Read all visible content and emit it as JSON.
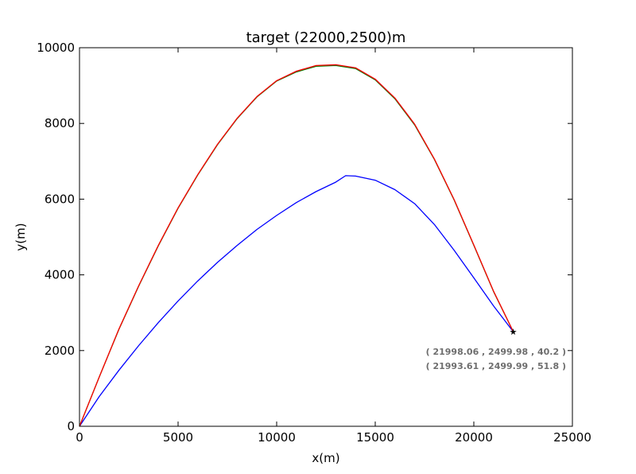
{
  "chart_data": {
    "type": "line",
    "title": "target (22000,2500)m",
    "xlabel": "x(m)",
    "ylabel": "y(m)",
    "xlim": [
      0,
      25000
    ],
    "ylim": [
      0,
      10000
    ],
    "xticks": [
      "0",
      "5000",
      "10000",
      "15000",
      "20000",
      "25000"
    ],
    "yticks": [
      "0",
      "2000",
      "4000",
      "6000",
      "8000",
      "10000"
    ],
    "grid": false,
    "series": [
      {
        "color": "#0000ff",
        "x": [
          0,
          1000,
          2000,
          3000,
          4000,
          5000,
          6000,
          7000,
          8000,
          9000,
          10000,
          11000,
          12000,
          13000,
          13500,
          14000,
          15000,
          16000,
          17000,
          18000,
          19000,
          20000,
          21000,
          22000
        ],
        "y": [
          0,
          785,
          1480,
          2130,
          2740,
          3310,
          3840,
          4330,
          4780,
          5200,
          5570,
          5910,
          6200,
          6450,
          6620,
          6610,
          6500,
          6250,
          5880,
          5330,
          4650,
          3920,
          3180,
          2500
        ]
      },
      {
        "color": "#008000",
        "x": [
          0,
          1000,
          2000,
          3000,
          4000,
          5000,
          6000,
          7000,
          8000,
          9000,
          10000,
          11000,
          12000,
          13000,
          14000,
          15000,
          16000,
          17000,
          18000,
          19000,
          20000,
          21000,
          22000
        ],
        "y": [
          0,
          1300,
          2560,
          3700,
          4770,
          5760,
          6640,
          7440,
          8130,
          8700,
          9120,
          9360,
          9510,
          9530,
          9450,
          9150,
          8650,
          7960,
          7050,
          5980,
          4780,
          3560,
          2500
        ]
      },
      {
        "color": "#ff0000",
        "x": [
          0,
          1000,
          2000,
          3000,
          4000,
          5000,
          6000,
          7000,
          8000,
          9000,
          10000,
          11000,
          12000,
          13000,
          14000,
          15000,
          16000,
          17000,
          18000,
          19000,
          20000,
          21000,
          22000
        ],
        "y": [
          0,
          1300,
          2570,
          3710,
          4780,
          5770,
          6650,
          7450,
          8140,
          8710,
          9130,
          9380,
          9530,
          9550,
          9470,
          9170,
          8670,
          7980,
          7060,
          5990,
          4790,
          3570,
          2500
        ]
      }
    ],
    "target_marker": {
      "x": 22000,
      "y": 2500,
      "symbol": "★"
    },
    "annotations": [
      "( 21998.06 , 2499.98 , 40.2 )",
      "( 21993.61 , 2499.99 , 51.8 )"
    ]
  }
}
